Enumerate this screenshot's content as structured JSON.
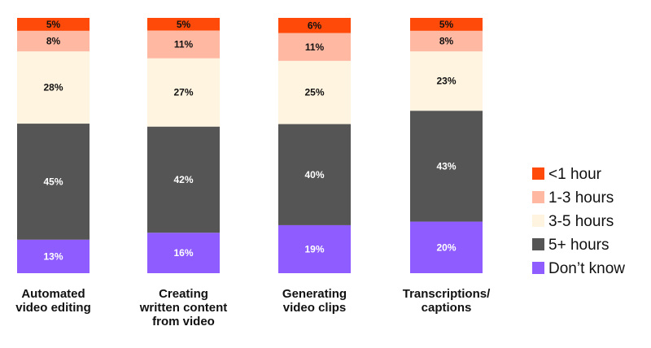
{
  "chart_data": {
    "type": "bar",
    "stacked": true,
    "orientation": "vertical",
    "categories": [
      [
        "Automated",
        "video editing"
      ],
      [
        "Creating",
        "written content",
        "from video"
      ],
      [
        "Generating",
        "video clips"
      ],
      [
        "Transcriptions/",
        "captions"
      ]
    ],
    "series": [
      {
        "name": "Don’t know",
        "color": "#8F5CFF",
        "label_color": "#ffffff",
        "values": [
          13,
          16,
          19,
          20
        ]
      },
      {
        "name": "5+ hours",
        "color": "#555555",
        "label_color": "#ffffff",
        "values": [
          45,
          42,
          40,
          43
        ]
      },
      {
        "name": "3-5 hours",
        "color": "#FFF4DF",
        "label_color": "#111111",
        "values": [
          28,
          27,
          25,
          23
        ]
      },
      {
        "name": "1-3 hours",
        "color": "#FFB9A3",
        "label_color": "#111111",
        "values": [
          8,
          11,
          11,
          8
        ]
      },
      {
        "name": "<1 hour",
        "color": "#FF4A0A",
        "label_color": "#111111",
        "values": [
          5,
          5,
          6,
          5
        ]
      }
    ],
    "legend_order": [
      "<1 hour",
      "1-3 hours",
      "3-5 hours",
      "5+ hours",
      "Don’t know"
    ],
    "value_suffix": "%",
    "legend_position": "right",
    "grid": false,
    "axes_visible": false
  }
}
